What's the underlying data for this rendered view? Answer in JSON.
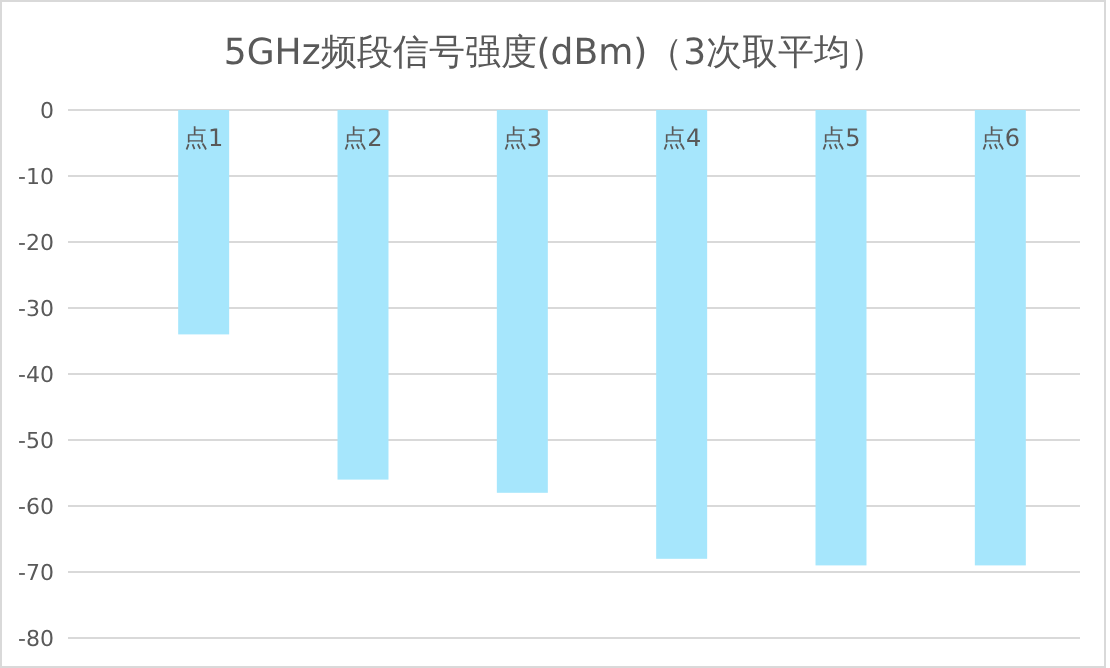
{
  "chart_data": {
    "type": "bar",
    "title": "5GHz频段信号强度(dBm)（3次取平均）",
    "categories": [
      "点1",
      "点2",
      "点3",
      "点4",
      "点5",
      "点6"
    ],
    "values": [
      -34,
      -56,
      -58,
      -68,
      -69,
      -69
    ],
    "color": "#a6e6fc",
    "ylim": [
      -80,
      0
    ],
    "yticks": [
      0,
      -10,
      -20,
      -30,
      -40,
      -50,
      -60,
      -70,
      -80
    ],
    "grid": "y"
  }
}
